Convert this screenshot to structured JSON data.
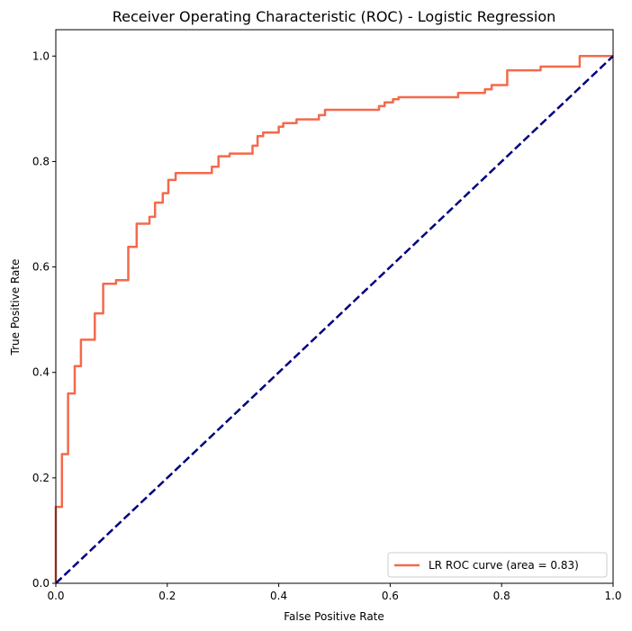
{
  "chart_data": {
    "type": "line",
    "title": "Receiver Operating Characteristic (ROC) - Logistic Regression",
    "xlabel": "False Positive Rate",
    "ylabel": "True Positive Rate",
    "xlim": [
      0.0,
      1.0
    ],
    "ylim": [
      0.0,
      1.05
    ],
    "x_ticks": [
      0.0,
      0.2,
      0.4,
      0.6,
      0.8,
      1.0
    ],
    "x_tick_labels": [
      "0.0",
      "0.2",
      "0.4",
      "0.6",
      "0.8",
      "1.0"
    ],
    "y_ticks": [
      0.0,
      0.2,
      0.4,
      0.6,
      0.8,
      1.0
    ],
    "y_tick_labels": [
      "0.0",
      "0.2",
      "0.4",
      "0.6",
      "0.8",
      "1.0"
    ],
    "grid": false,
    "legend_position": "lower-right",
    "series": [
      {
        "name": "LR ROC curve (area = 0.83)",
        "color": "#f4694b",
        "style": "solid",
        "x": [
          0.0,
          0.0,
          0.011,
          0.011,
          0.022,
          0.022,
          0.022,
          0.022,
          0.034,
          0.034,
          0.045,
          0.045,
          0.045,
          0.07,
          0.07,
          0.085,
          0.085,
          0.108,
          0.108,
          0.13,
          0.13,
          0.145,
          0.145,
          0.168,
          0.168,
          0.178,
          0.178,
          0.192,
          0.192,
          0.202,
          0.202,
          0.215,
          0.215,
          0.28,
          0.28,
          0.292,
          0.292,
          0.312,
          0.312,
          0.353,
          0.353,
          0.362,
          0.362,
          0.372,
          0.372,
          0.4,
          0.4,
          0.408,
          0.408,
          0.432,
          0.432,
          0.472,
          0.472,
          0.483,
          0.483,
          0.58,
          0.58,
          0.59,
          0.59,
          0.605,
          0.605,
          0.615,
          0.615,
          0.722,
          0.722,
          0.77,
          0.77,
          0.782,
          0.782,
          0.81,
          0.81,
          0.87,
          0.87,
          0.94,
          0.94,
          1.0
        ],
        "y": [
          0.0,
          0.145,
          0.145,
          0.245,
          0.245,
          0.295,
          0.33,
          0.36,
          0.36,
          0.412,
          0.412,
          0.445,
          0.462,
          0.462,
          0.512,
          0.512,
          0.568,
          0.568,
          0.575,
          0.575,
          0.638,
          0.638,
          0.682,
          0.682,
          0.695,
          0.695,
          0.722,
          0.722,
          0.74,
          0.74,
          0.765,
          0.765,
          0.778,
          0.778,
          0.79,
          0.79,
          0.81,
          0.81,
          0.815,
          0.815,
          0.83,
          0.83,
          0.848,
          0.848,
          0.855,
          0.855,
          0.866,
          0.866,
          0.873,
          0.873,
          0.88,
          0.88,
          0.888,
          0.888,
          0.898,
          0.898,
          0.905,
          0.905,
          0.912,
          0.912,
          0.918,
          0.918,
          0.922,
          0.922,
          0.93,
          0.93,
          0.937,
          0.937,
          0.945,
          0.945,
          0.973,
          0.973,
          0.98,
          0.98,
          1.0,
          1.0
        ]
      },
      {
        "name": "",
        "color": "#000080",
        "style": "dashed",
        "x": [
          0.0,
          1.0
        ],
        "y": [
          0.0,
          1.0
        ]
      }
    ]
  }
}
